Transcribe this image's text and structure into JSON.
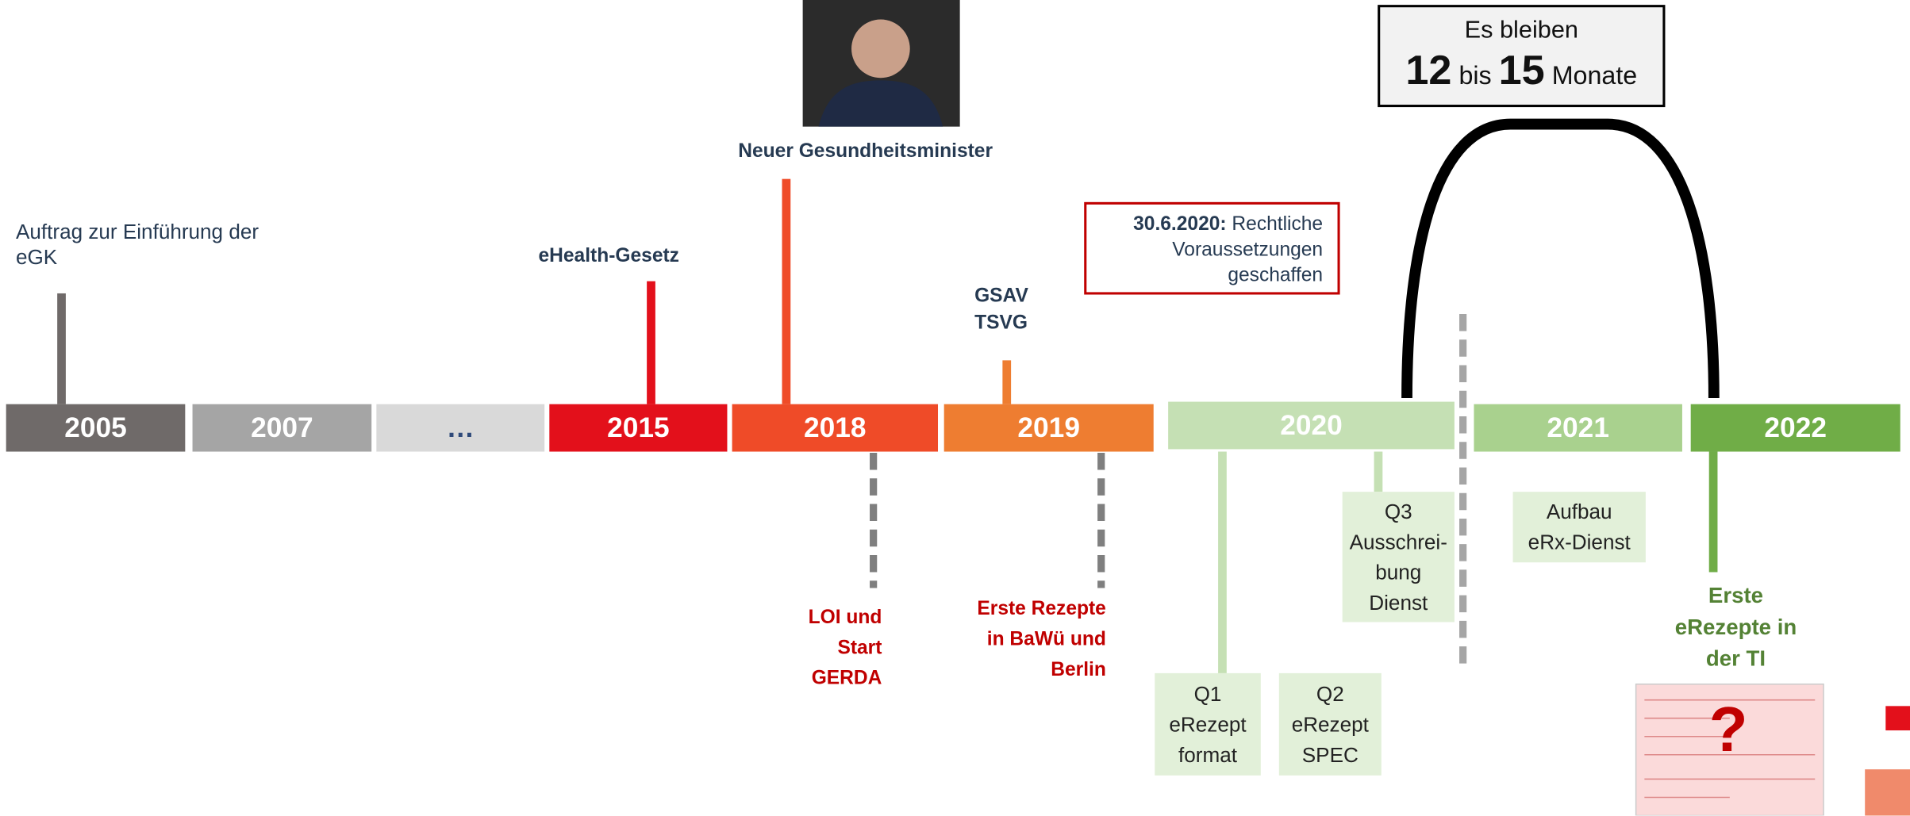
{
  "years": [
    "2005",
    "2007",
    "…",
    "2015",
    "2018",
    "2019",
    "2020",
    "2021",
    "2022"
  ],
  "events": {
    "egk": "Auftrag zur Einführung der eGK",
    "ehealth": "eHealth-Gesetz",
    "minister": "Neuer Gesundheitsminister",
    "laws": [
      "GSAV",
      "TSVG"
    ],
    "legal": {
      "date": "30.6.2020:",
      "text": [
        "Rechtliche",
        "Voraussetzungen",
        "geschaffen"
      ]
    },
    "remaining": {
      "intro": "Es bleiben",
      "from": "12",
      "word": "bis",
      "to": "15",
      "unit": "Monate"
    },
    "gerda": [
      "LOI und",
      "Start",
      "GERDA"
    ],
    "first_rx": [
      "Erste Rezepte",
      "in BaWü und",
      "Berlin"
    ],
    "q1": [
      "Q1",
      "eRezept",
      "format"
    ],
    "q2": [
      "Q2",
      "eRezept",
      "SPEC"
    ],
    "q3": [
      "Q3",
      "Ausschrei-",
      "bung",
      "Dienst"
    ],
    "erx": [
      "Aufbau",
      "eRx-Dienst"
    ],
    "ti": [
      "Erste",
      "eRezepte in",
      "der TI"
    ],
    "question": "?"
  }
}
